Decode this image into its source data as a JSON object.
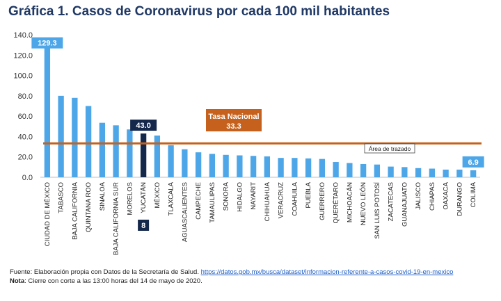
{
  "title": "Gráfica 1. Casos de Coronavirus por cada 100 mil habitantes",
  "chart_data": {
    "type": "bar",
    "title": "Gráfica 1. Casos de Coronavirus por cada 100 mil habitantes",
    "xlabel": "",
    "ylabel": "",
    "ylim": [
      0,
      140
    ],
    "yticks": [
      "0.0",
      "20.0",
      "40.0",
      "60.0",
      "80.0",
      "100.0",
      "120.0",
      "140.0"
    ],
    "grid": false,
    "categories": [
      "CIUDAD DE MÉXICO",
      "TABASCO",
      "BAJA CALIFORNIA",
      "QUINTANA ROO",
      "SINALOA",
      "BAJA CALIFORNIA SUR",
      "MORELOS",
      "YUCATÁN",
      "MÉXICO",
      "TLAXCALA",
      "AGUASCALIENTES",
      "CAMPECHE",
      "TAMAULIPAS",
      "SONORA",
      "HIDALGO",
      "NAYARIT",
      "CHIHUAHUA",
      "VERACRUZ",
      "COAHUILA",
      "PUEBLA",
      "GUERRERO",
      "QUERÉTARO",
      "MICHOACÁN",
      "NUEVO LEÓN",
      "SAN LUIS POTOSÍ",
      "ZACATECAS",
      "GUANAJUATO",
      "JALISCO",
      "CHIAPAS",
      "OAXACA",
      "DURANGO",
      "COLIMA"
    ],
    "values": [
      129.3,
      80,
      78,
      70,
      53.5,
      51,
      47,
      43.0,
      41,
      31.5,
      27.5,
      24.5,
      23,
      22,
      21.5,
      21,
      20.5,
      19,
      19,
      18.5,
      18,
      15,
      14,
      13,
      12.5,
      10.5,
      10,
      9,
      8.5,
      7.5,
      7.5,
      6.9
    ],
    "highlight_index": 7,
    "bar_color": "#4da6e8",
    "highlight_color": "#14284b",
    "reference_line": {
      "label": "Tasa Nacional",
      "value_label": "33.3",
      "value": 33.3,
      "color": "#c5611c"
    },
    "data_labels": [
      {
        "index": 0,
        "text": "129.3",
        "bg": "#4da6e8"
      },
      {
        "index": 7,
        "text": "43.0",
        "bg": "#14284b"
      },
      {
        "index": 31,
        "text": "6.9",
        "bg": "#4da6e8"
      }
    ],
    "rank_label": {
      "index": 7,
      "text": "8"
    },
    "tooltip": "Área de trazado"
  },
  "footer": {
    "source_prefix": "Fuente: Elaboración propia con Datos de la Secretaría de Salud.",
    "source_url": "https://datos.gob.mx/busca/dataset/informacion-referente-a-casos-covid-19-en-mexico",
    "note_label": "Nota",
    "note_text": ": Cierre con corte a las 13:00 horas del 14 de mayo de 2020."
  }
}
